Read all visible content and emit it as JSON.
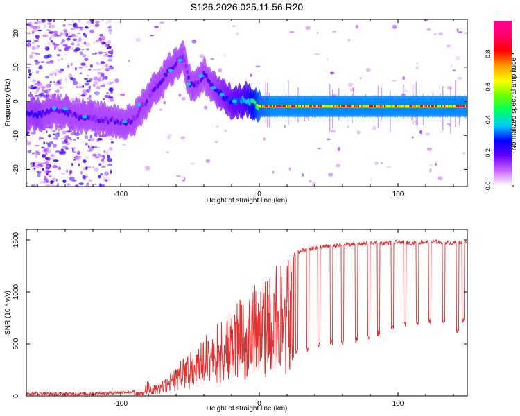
{
  "title": "S126.2026.025.11.56.R20",
  "chart_data": [
    {
      "type": "heatmap",
      "xlabel": "Height of straight line (km)",
      "ylabel": "Frequency (Hz)",
      "xlim": [
        -168,
        150
      ],
      "ylim": [
        -25,
        24
      ],
      "xticks": [
        -100,
        0,
        100
      ],
      "yticks": [
        -20,
        -10,
        0,
        10,
        20
      ],
      "grid": false,
      "colorbar": {
        "label": "Normalized spectral amplitude",
        "range": [
          0,
          1
        ],
        "ticks": [
          "0.0",
          "0.2",
          "0.4",
          "0.6",
          "0.8"
        ],
        "tick_values": [
          0,
          0.2,
          0.4,
          0.6,
          0.8
        ],
        "colormap": [
          "#ffffff",
          "#cc66ff",
          "#6600ff",
          "#0000ff",
          "#00ccff",
          "#00ff66",
          "#66ff00",
          "#ffff00",
          "#ff9900",
          "#ff0000",
          "#ff0066",
          "#ff0099"
        ]
      },
      "ridge": {
        "x": [
          -168,
          -160,
          -150,
          -140,
          -130,
          -120,
          -110,
          -100,
          -95,
          -90,
          -85,
          -80,
          -75,
          -70,
          -65,
          -60,
          -55,
          -50,
          -45,
          -40,
          -35,
          -30,
          -25,
          -20,
          -15,
          -10,
          -5,
          0,
          10,
          20,
          40,
          60,
          80,
          100,
          120,
          150
        ],
        "y": [
          -3.5,
          -4,
          -3,
          -3,
          -4.5,
          -5,
          -5.5,
          -6,
          -6.5,
          -5,
          -2,
          1,
          4,
          6,
          9,
          11,
          13,
          5,
          5,
          8,
          5,
          3,
          1,
          0,
          0,
          0.5,
          -0.5,
          -1.5,
          -1.5,
          -1.5,
          -1.5,
          -1.5,
          -1.5,
          -1.5,
          -1.5,
          -1.5
        ],
        "amplitude": [
          0.35,
          0.4,
          0.3,
          0.35,
          0.3,
          0.25,
          0.3,
          0.3,
          0.35,
          0.3,
          0.3,
          0.25,
          0.3,
          0.35,
          0.3,
          0.3,
          0.3,
          0.35,
          0.3,
          0.3,
          0.35,
          0.4,
          0.45,
          0.5,
          0.55,
          0.6,
          0.75,
          0.9,
          0.95,
          0.95,
          0.95,
          0.95,
          0.95,
          0.95,
          0.95,
          0.95
        ]
      }
    },
    {
      "type": "line",
      "xlabel": "Height of straight line (km)",
      "ylabel": "SNR (10 * v/v)",
      "xlim": [
        -168,
        150
      ],
      "ylim": [
        0,
        1600
      ],
      "xticks": [
        -100,
        0,
        100
      ],
      "yticks": [
        0,
        500,
        1000,
        1500
      ],
      "grid": false,
      "series": [
        {
          "name": "SNR",
          "color": "#e83030",
          "x": [
            -168,
            -150,
            -130,
            -110,
            -95,
            -85,
            -80,
            -75,
            -70,
            -65,
            -60,
            -55,
            -50,
            -45,
            -40,
            -35,
            -30,
            -25,
            -20,
            -15,
            -10,
            -5,
            0,
            5,
            10,
            15,
            20,
            25,
            30,
            40,
            50,
            60,
            70,
            80,
            90,
            100,
            110,
            120,
            130,
            140,
            150
          ],
          "y": [
            20,
            15,
            15,
            20,
            30,
            40,
            60,
            100,
            150,
            200,
            280,
            350,
            420,
            480,
            550,
            620,
            700,
            780,
            850,
            920,
            980,
            1050,
            1100,
            1150,
            1200,
            1250,
            1300,
            1350,
            1400,
            1420,
            1440,
            1450,
            1460,
            1470,
            1470,
            1480,
            1470,
            1480,
            1480,
            1470,
            1480
          ],
          "drop_x": [
            27,
            35,
            43,
            52,
            60,
            70,
            79,
            86,
            96,
            105,
            114,
            123,
            133,
            143,
            147
          ],
          "drop_y": [
            390,
            420,
            460,
            480,
            470,
            510,
            530,
            570,
            620,
            660,
            680,
            690,
            700,
            610,
            700
          ]
        }
      ]
    }
  ]
}
